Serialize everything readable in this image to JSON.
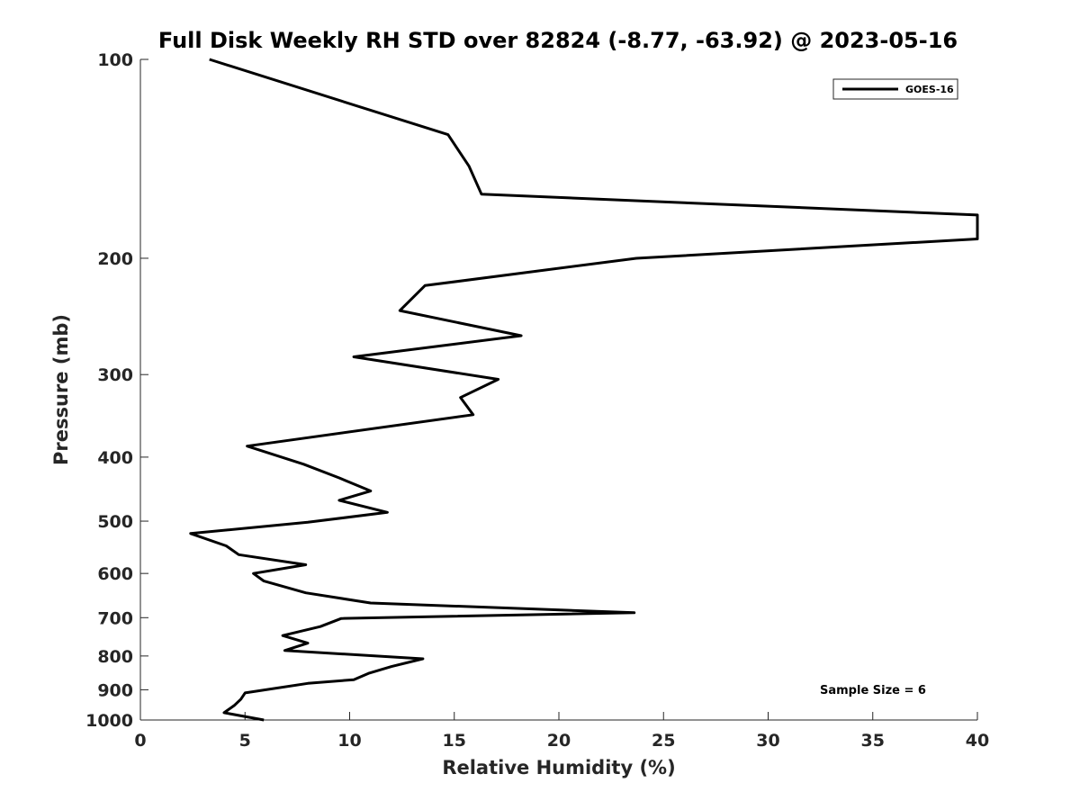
{
  "chart_data": {
    "type": "line",
    "title": "Full Disk Weekly RH STD over 82824 (-8.77, -63.92) @ 2023-05-16",
    "xlabel": "Relative Humidity (%)",
    "ylabel": "Pressure (mb)",
    "xlim": [
      0,
      40
    ],
    "ylim": [
      100,
      1000
    ],
    "y_scale": "log",
    "y_reversed": true,
    "x_ticks": [
      0,
      5,
      10,
      15,
      20,
      25,
      30,
      35,
      40
    ],
    "y_ticks": [
      100,
      200,
      300,
      400,
      500,
      600,
      700,
      800,
      900,
      1000
    ],
    "grid": false,
    "legend_position": "top-right",
    "annotation": "Sample Size = 6",
    "series": [
      {
        "name": "GOES-16",
        "color": "#000000",
        "x": [
          3.3,
          14.7,
          15.7,
          16.3,
          40.0,
          40.0,
          23.7,
          13.6,
          12.4,
          18.2,
          10.2,
          17.1,
          15.3,
          15.9,
          5.1,
          7.8,
          9.5,
          11.0,
          9.5,
          11.8,
          8.0,
          2.4,
          4.1,
          4.7,
          7.9,
          5.4,
          5.9,
          7.9,
          11.0,
          23.6,
          9.6,
          8.6,
          6.8,
          8.0,
          6.9,
          13.5,
          12.0,
          10.9,
          10.2,
          8.0,
          5.0,
          4.8,
          4.5,
          4.0,
          5.9
        ],
        "y": [
          100,
          130,
          145,
          160,
          172,
          187,
          200,
          220,
          240,
          262,
          282,
          305,
          325,
          345,
          385,
          410,
          430,
          450,
          465,
          485,
          502,
          522,
          545,
          562,
          582,
          600,
          616,
          642,
          665,
          688,
          702,
          722,
          745,
          765,
          785,
          808,
          830,
          850,
          869,
          880,
          910,
          930,
          950,
          975,
          1000
        ]
      }
    ]
  }
}
